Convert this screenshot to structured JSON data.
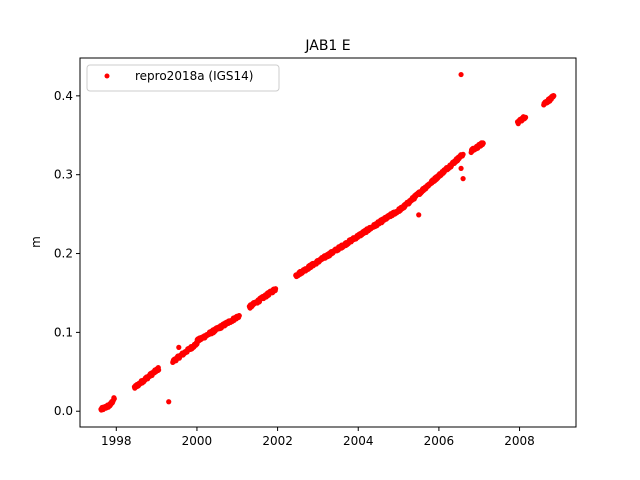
{
  "chart_data": {
    "type": "scatter",
    "title": "JAB1 E",
    "xlabel": "",
    "ylabel": "m",
    "xlim": [
      1997.1,
      2009.4
    ],
    "ylim": [
      -0.02,
      0.448
    ],
    "xticks": [
      1998,
      2000,
      2002,
      2004,
      2006,
      2008
    ],
    "xtick_labels": [
      "1998",
      "2000",
      "2002",
      "2004",
      "2006",
      "2008"
    ],
    "yticks": [
      0.0,
      0.1,
      0.2,
      0.3,
      0.4
    ],
    "ytick_labels": [
      "0.0",
      "0.1",
      "0.2",
      "0.3",
      "0.4"
    ],
    "grid": false,
    "legend_position": "upper-left",
    "series": [
      {
        "name": "repro2018a (IGS14)",
        "color": "#ff0000",
        "marker": "dot",
        "segments": [
          {
            "x0": 1997.62,
            "y0": 0.002,
            "x1": 1997.85,
            "y1": 0.008
          },
          {
            "x0": 1997.85,
            "y0": 0.008,
            "x1": 1997.95,
            "y1": 0.016
          },
          {
            "x0": 1998.45,
            "y0": 0.03,
            "x1": 1999.05,
            "y1": 0.054
          },
          {
            "x0": 1999.4,
            "y0": 0.063,
            "x1": 2000.0,
            "y1": 0.086
          },
          {
            "x0": 2000.0,
            "y0": 0.089,
            "x1": 2001.05,
            "y1": 0.121
          },
          {
            "x0": 2001.3,
            "y0": 0.132,
            "x1": 2001.95,
            "y1": 0.155
          },
          {
            "x0": 2002.45,
            "y0": 0.172,
            "x1": 2005.1,
            "y1": 0.258
          },
          {
            "x0": 2005.1,
            "y0": 0.258,
            "x1": 2006.6,
            "y1": 0.326
          },
          {
            "x0": 2006.8,
            "y0": 0.33,
            "x1": 2007.1,
            "y1": 0.34
          },
          {
            "x0": 2007.95,
            "y0": 0.366,
            "x1": 2008.15,
            "y1": 0.374
          },
          {
            "x0": 2008.6,
            "y0": 0.39,
            "x1": 2008.85,
            "y1": 0.399
          }
        ],
        "outliers": [
          {
            "x": 1999.3,
            "y": 0.012
          },
          {
            "x": 1999.55,
            "y": 0.081
          },
          {
            "x": 2005.5,
            "y": 0.249
          },
          {
            "x": 2006.3,
            "y": 0.31
          },
          {
            "x": 2006.55,
            "y": 0.308
          },
          {
            "x": 2006.6,
            "y": 0.295
          },
          {
            "x": 2006.55,
            "y": 0.427
          }
        ]
      }
    ]
  }
}
